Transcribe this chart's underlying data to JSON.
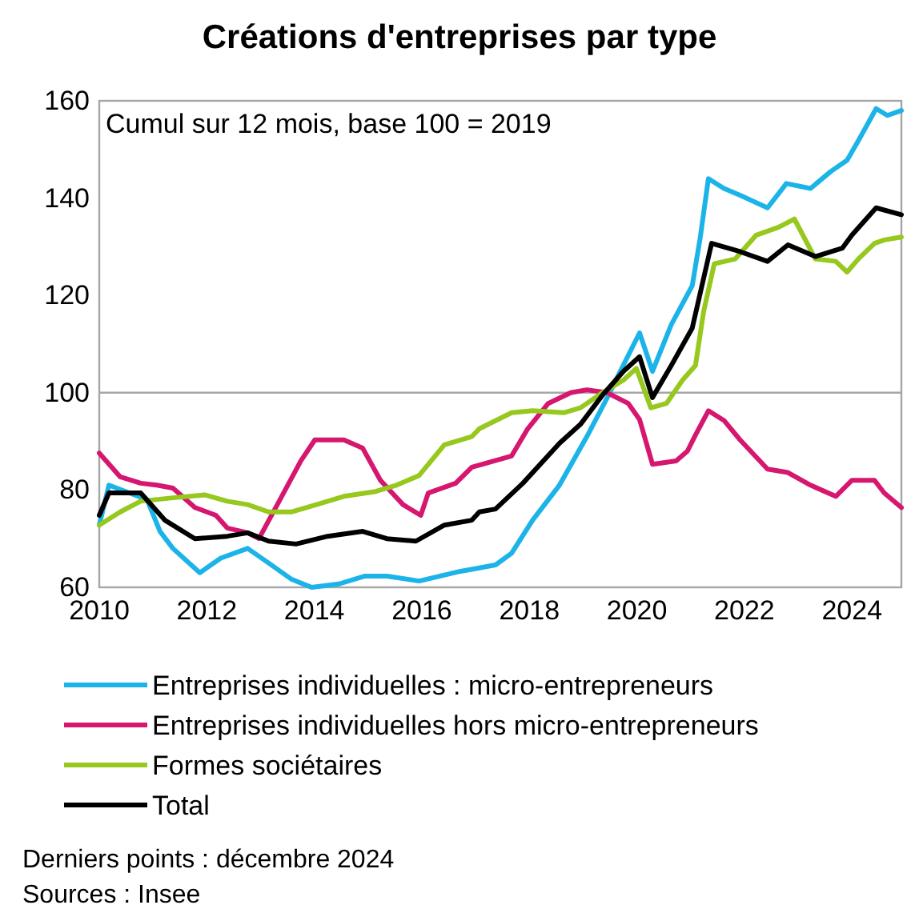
{
  "chart_data": {
    "type": "line",
    "title": "Créations d'entreprises par type",
    "annotations": [
      "Cumul sur 12 mois, base 100 = 2019",
      "Derniers points : décembre 2024",
      "Sources : Insee"
    ],
    "xlim": [
      2010,
      2024.92
    ],
    "xticks": [
      2010,
      2012,
      2014,
      2016,
      2018,
      2020,
      2022,
      2024
    ],
    "ylim": [
      60,
      160
    ],
    "yticks": [
      60,
      80,
      100,
      120,
      140,
      160
    ],
    "grid": false,
    "legend": "bottom",
    "line_style": "solid",
    "marker": "none",
    "ref_lines": [
      {
        "axis": "y",
        "value": 100,
        "color": "#a6a6a6"
      }
    ],
    "series": [
      {
        "name": "Entreprises individuelles : micro-entrepreneurs",
        "color": "#1cb4e8",
        "x": [
          2010.0,
          2010.18,
          2010.89,
          2011.13,
          2011.37,
          2011.87,
          2012.26,
          2012.76,
          2013.15,
          2013.57,
          2013.95,
          2014.46,
          2014.93,
          2015.35,
          2015.95,
          2016.72,
          2017.07,
          2017.37,
          2017.67,
          2018.06,
          2018.56,
          2019.07,
          2019.45,
          2019.75,
          2020.05,
          2020.29,
          2020.64,
          2021.03,
          2021.18,
          2021.33,
          2021.62,
          2021.92,
          2022.43,
          2022.78,
          2023.23,
          2023.61,
          2023.91,
          2024.12,
          2024.45,
          2024.66,
          2024.92
        ],
        "values": [
          72.8,
          81,
          78,
          71.5,
          68,
          63,
          66,
          68,
          65,
          61.7,
          60,
          60.7,
          62.3,
          62.3,
          61.3,
          63.3,
          64,
          64.6,
          67,
          73.8,
          81,
          91,
          99,
          105.7,
          112.3,
          104.4,
          114,
          122,
          132,
          144,
          142,
          140.6,
          138,
          143,
          142,
          145.5,
          147.8,
          151.8,
          158.4,
          157,
          158
        ]
      },
      {
        "name": "Entreprises individuelles hors micro-entrepreneurs",
        "color": "#d6176f",
        "x": [
          2010.0,
          2010.39,
          2010.77,
          2011.07,
          2011.37,
          2011.78,
          2012.17,
          2012.38,
          2012.76,
          2012.97,
          2013.36,
          2013.75,
          2014.01,
          2014.55,
          2014.9,
          2015.23,
          2015.65,
          2015.98,
          2016.12,
          2016.63,
          2016.93,
          2017.67,
          2017.97,
          2018.35,
          2018.77,
          2019.07,
          2019.45,
          2019.84,
          2020.05,
          2020.29,
          2020.73,
          2020.94,
          2021.09,
          2021.33,
          2021.62,
          2021.92,
          2022.43,
          2022.81,
          2023.23,
          2023.7,
          2024.0,
          2024.42,
          2024.6,
          2024.92
        ],
        "values": [
          87.6,
          82.7,
          81.4,
          81,
          80.4,
          76.4,
          74.8,
          72.2,
          71.2,
          70,
          78,
          86,
          90.3,
          90.3,
          88.6,
          82,
          77,
          74.8,
          79.4,
          81.4,
          84.7,
          87,
          92.6,
          97.8,
          100,
          100.6,
          100,
          97.8,
          94.5,
          85.3,
          86,
          88,
          91.3,
          96.3,
          94.3,
          90.3,
          84.3,
          83.6,
          81,
          78.7,
          82,
          82,
          79.4,
          76.4
        ]
      },
      {
        "name": "Formes sociétaires",
        "color": "#96c81e",
        "x": [
          2010.0,
          2010.39,
          2010.77,
          2011.37,
          2011.96,
          2012.38,
          2012.76,
          2013.15,
          2013.57,
          2014.04,
          2014.55,
          2015.14,
          2015.53,
          2015.95,
          2016.42,
          2016.93,
          2017.07,
          2017.67,
          2018.06,
          2018.65,
          2018.95,
          2019.36,
          2019.75,
          2019.99,
          2020.26,
          2020.55,
          2020.85,
          2021.09,
          2021.24,
          2021.44,
          2021.83,
          2022.22,
          2022.63,
          2022.93,
          2023.32,
          2023.7,
          2023.91,
          2024.12,
          2024.42,
          2024.6,
          2024.92
        ],
        "values": [
          72.8,
          75.5,
          77.7,
          78.4,
          79,
          77.7,
          77,
          75.5,
          75.5,
          77,
          78.7,
          79.7,
          81,
          83,
          89.3,
          91,
          92.6,
          95.9,
          96.3,
          95.9,
          96.9,
          100,
          102.6,
          105,
          96.9,
          97.8,
          102.6,
          105.6,
          116.6,
          126.5,
          127.5,
          132.4,
          134,
          135.7,
          127.5,
          127,
          124.8,
          127.5,
          130.7,
          131.4,
          132
        ]
      },
      {
        "name": "Total",
        "color": "#000000",
        "x": [
          2010.0,
          2010.18,
          2010.77,
          2011.22,
          2011.78,
          2012.38,
          2012.76,
          2013.15,
          2013.66,
          2014.25,
          2014.9,
          2015.35,
          2015.89,
          2016.42,
          2016.93,
          2017.07,
          2017.37,
          2017.88,
          2018.56,
          2018.95,
          2019.36,
          2019.75,
          2020.05,
          2020.29,
          2020.64,
          2021.03,
          2021.39,
          2021.92,
          2022.43,
          2022.81,
          2023.32,
          2023.82,
          2024.0,
          2024.45,
          2024.92
        ],
        "values": [
          74.8,
          79.4,
          79.4,
          73.8,
          70,
          70.5,
          71.2,
          69.5,
          68.9,
          70.5,
          71.5,
          70,
          69.5,
          72.8,
          73.8,
          75.5,
          76.1,
          81.4,
          89.6,
          93.5,
          99.5,
          104.4,
          107.4,
          99,
          105.6,
          113.3,
          130.7,
          129,
          127,
          130.4,
          128,
          129.7,
          132.4,
          138,
          136.6
        ]
      }
    ]
  }
}
